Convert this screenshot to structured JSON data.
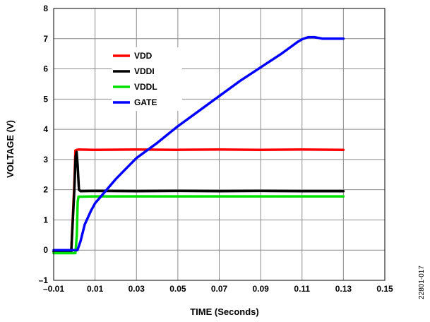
{
  "figure_id": "22801-017",
  "chart_data": {
    "type": "line",
    "xlabel": "TIME (Seconds)",
    "ylabel": "VOLTAGE (V)",
    "xlim": [
      -0.01,
      0.15
    ],
    "ylim": [
      -1,
      8
    ],
    "x_ticks": [
      -0.01,
      0.01,
      0.03,
      0.05,
      0.07,
      0.09,
      0.11,
      0.13,
      0.15
    ],
    "x_tick_labels": [
      "–0.01",
      "0.01",
      "0.03",
      "0.05",
      "0.07",
      "0.09",
      "0.11",
      "0.13",
      "0.15"
    ],
    "y_ticks": [
      -1,
      0,
      1,
      2,
      3,
      4,
      5,
      6,
      7,
      8
    ],
    "y_tick_labels": [
      "–1",
      "0",
      "1",
      "2",
      "3",
      "4",
      "5",
      "6",
      "7",
      "8"
    ],
    "grid": true,
    "legend_position": "top-left",
    "series": [
      {
        "name": "VDD",
        "color": "#ff0000",
        "x": [
          -0.01,
          -0.0015,
          0.0,
          0.0005,
          0.0012,
          0.002,
          0.01,
          0.03,
          0.05,
          0.07,
          0.09,
          0.11,
          0.13
        ],
        "y": [
          -0.05,
          -0.05,
          2.2,
          3.3,
          3.32,
          3.33,
          3.32,
          3.33,
          3.32,
          3.33,
          3.32,
          3.33,
          3.32
        ]
      },
      {
        "name": "VDDI",
        "color": "#000000",
        "x": [
          -0.01,
          -0.0015,
          0.0,
          0.0006,
          0.0011,
          0.0016,
          0.0022,
          0.003,
          0.01,
          0.03,
          0.05,
          0.07,
          0.09,
          0.11,
          0.13
        ],
        "y": [
          -0.05,
          -0.05,
          2.0,
          3.1,
          3.25,
          2.8,
          2.0,
          1.95,
          1.96,
          1.95,
          1.96,
          1.95,
          1.96,
          1.95,
          1.95
        ]
      },
      {
        "name": "VDDL",
        "color": "#00e000",
        "x": [
          -0.01,
          0.0005,
          0.0012,
          0.0016,
          0.002,
          0.01,
          0.03,
          0.05,
          0.07,
          0.09,
          0.11,
          0.13
        ],
        "y": [
          -0.1,
          -0.1,
          0.5,
          1.6,
          1.77,
          1.78,
          1.78,
          1.78,
          1.78,
          1.78,
          1.78,
          1.78
        ]
      },
      {
        "name": "GATE",
        "color": "#0000ff",
        "x": [
          -0.01,
          0.0015,
          0.003,
          0.005,
          0.008,
          0.01,
          0.015,
          0.02,
          0.025,
          0.03,
          0.04,
          0.05,
          0.06,
          0.07,
          0.08,
          0.09,
          0.1,
          0.105,
          0.108,
          0.11,
          0.113,
          0.116,
          0.12,
          0.125,
          0.13
        ],
        "y": [
          0.0,
          0.0,
          0.3,
          0.85,
          1.3,
          1.55,
          1.95,
          2.35,
          2.7,
          3.05,
          3.55,
          4.1,
          4.6,
          5.1,
          5.6,
          6.05,
          6.5,
          6.75,
          6.9,
          6.98,
          7.05,
          7.05,
          7.0,
          7.0,
          7.0
        ]
      }
    ]
  }
}
